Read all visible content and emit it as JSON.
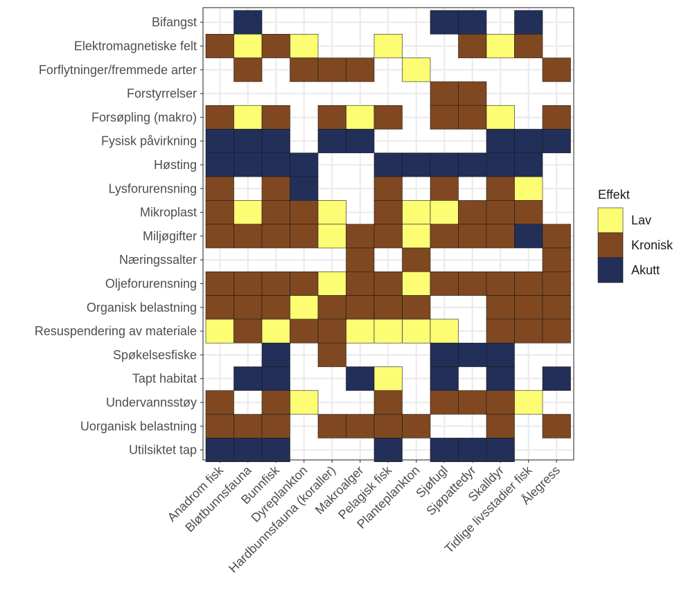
{
  "chart_data": {
    "type": "heatmap",
    "title": "",
    "xlabel": "",
    "ylabel": "",
    "grid": true,
    "legend_position": "right",
    "columns": [
      "Anadrom fisk",
      "Bløtbunnsfauna",
      "Bunnfisk",
      "Dyreplankton",
      "Hardbunnsfauna (koraller)",
      "Makroalger",
      "Pelagisk fisk",
      "Planteplankton",
      "Sjøfugl",
      "Sjøpattedyr",
      "Skalldyr",
      "Tidlige livsstadier fisk",
      "Ålegress"
    ],
    "rows": [
      "Bifangst",
      "Elektromagnetiske felt",
      "Forflytninger/fremmede arter",
      "Forstyrrelser",
      "Forsøpling (makro)",
      "Fysisk påvirkning",
      "Høsting",
      "Lysforurensning",
      "Mikroplast",
      "Miljøgifter",
      "Næringssalter",
      "Oljeforurensning",
      "Organisk belastning",
      "Resuspendering av materiale",
      "Spøkelsesfiske",
      "Tapt habitat",
      "Undervannsstøy",
      "Uorganisk belastning",
      "Utilsiktet tap"
    ],
    "legend": {
      "title": "Effekt",
      "levels": [
        {
          "key": "L",
          "label": "Lav",
          "color": "#FDFD74"
        },
        {
          "key": "K",
          "label": "Kronisk",
          "color": "#804820"
        },
        {
          "key": "A",
          "label": "Akutt",
          "color": "#222F59"
        }
      ]
    },
    "cells": [
      [
        "",
        "A",
        "",
        "",
        "",
        "",
        "",
        "",
        "A",
        "A",
        "",
        "A",
        ""
      ],
      [
        "K",
        "L",
        "K",
        "L",
        "",
        "",
        "L",
        "",
        "",
        "K",
        "L",
        "K",
        ""
      ],
      [
        "",
        "K",
        "",
        "K",
        "K",
        "K",
        "",
        "L",
        "",
        "",
        "",
        "",
        "K"
      ],
      [
        "",
        "",
        "",
        "",
        "",
        "",
        "",
        "",
        "K",
        "K",
        "",
        "",
        ""
      ],
      [
        "K",
        "L",
        "K",
        "",
        "K",
        "L",
        "K",
        "",
        "K",
        "K",
        "L",
        "",
        "K"
      ],
      [
        "A",
        "A",
        "A",
        "",
        "A",
        "A",
        "",
        "",
        "",
        "",
        "A",
        "A",
        "A"
      ],
      [
        "A",
        "A",
        "A",
        "A",
        "",
        "",
        "A",
        "A",
        "A",
        "A",
        "A",
        "A",
        ""
      ],
      [
        "K",
        "",
        "K",
        "A",
        "",
        "",
        "K",
        "",
        "K",
        "",
        "K",
        "L",
        ""
      ],
      [
        "K",
        "L",
        "K",
        "K",
        "L",
        "",
        "K",
        "L",
        "L",
        "K",
        "K",
        "K",
        ""
      ],
      [
        "K",
        "K",
        "K",
        "K",
        "L",
        "K",
        "K",
        "L",
        "K",
        "K",
        "K",
        "A",
        "K"
      ],
      [
        "",
        "",
        "",
        "",
        "",
        "K",
        "",
        "K",
        "",
        "",
        "",
        "",
        "K"
      ],
      [
        "K",
        "K",
        "K",
        "K",
        "L",
        "K",
        "K",
        "L",
        "K",
        "K",
        "K",
        "K",
        "K"
      ],
      [
        "K",
        "K",
        "K",
        "L",
        "K",
        "K",
        "K",
        "K",
        "",
        "",
        "K",
        "K",
        "K"
      ],
      [
        "L",
        "K",
        "L",
        "K",
        "K",
        "L",
        "L",
        "L",
        "L",
        "",
        "K",
        "K",
        "K"
      ],
      [
        "",
        "",
        "A",
        "",
        "K",
        "",
        "",
        "",
        "A",
        "A",
        "A",
        "",
        ""
      ],
      [
        "",
        "A",
        "A",
        "",
        "",
        "A",
        "L",
        "",
        "A",
        "",
        "A",
        "",
        "A"
      ],
      [
        "K",
        "",
        "K",
        "L",
        "",
        "",
        "K",
        "",
        "K",
        "K",
        "K",
        "L",
        ""
      ],
      [
        "K",
        "K",
        "K",
        "",
        "K",
        "K",
        "K",
        "K",
        "",
        "",
        "K",
        "",
        "K"
      ],
      [
        "A",
        "A",
        "A",
        "",
        "",
        "",
        "A",
        "",
        "A",
        "A",
        "A",
        "",
        ""
      ]
    ]
  }
}
